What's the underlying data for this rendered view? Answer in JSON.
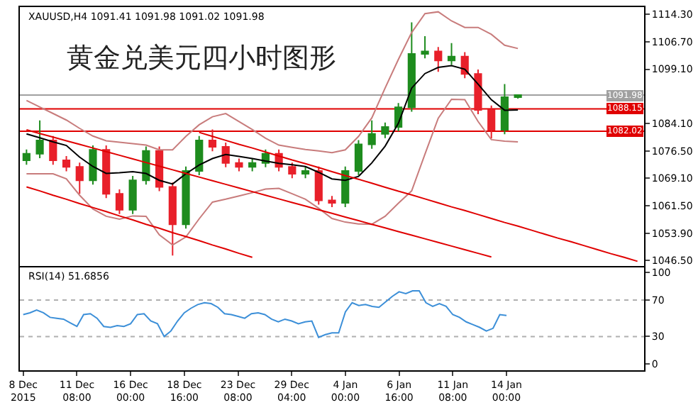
{
  "chart_data": [
    {
      "type": "candlestick",
      "title": "XAUUSD,H4 1091.41 1091.98 1091.02 1091.98",
      "annotations": [
        "黄金兑美元四小时图形"
      ],
      "categories": [
        null,
        null,
        null,
        null,
        null,
        null,
        null,
        null,
        null,
        null,
        null,
        null,
        null,
        null,
        null,
        null,
        null,
        null,
        null,
        null,
        null,
        null,
        null,
        null,
        null,
        null,
        null,
        null,
        null,
        null,
        null,
        null,
        null,
        null,
        null,
        null,
        null,
        null,
        null,
        null,
        null,
        null,
        null,
        null,
        null,
        null,
        null
      ],
      "ohlc": [
        [
          1074.0,
          1077.0,
          1072.8,
          1075.8
        ],
        [
          1075.8,
          1085.0,
          1074.6,
          1079.5
        ],
        [
          1079.5,
          1080.7,
          1072.8,
          1074.0
        ],
        [
          1074.0,
          1075.2,
          1071.0,
          1072.2
        ],
        [
          1072.2,
          1073.4,
          1064.8,
          1068.5
        ],
        [
          1068.5,
          1078.1,
          1067.3,
          1076.9
        ],
        [
          1076.9,
          1078.1,
          1063.6,
          1064.8
        ],
        [
          1064.8,
          1066.0,
          1059.2,
          1060.4
        ],
        [
          1060.4,
          1069.7,
          1059.2,
          1068.5
        ],
        [
          1068.5,
          1077.8,
          1067.3,
          1076.6
        ],
        [
          1076.6,
          1077.8,
          1065.5,
          1066.7
        ],
        [
          1066.7,
          1067.9,
          1047.8,
          1056.4
        ],
        [
          1056.4,
          1072.3,
          1055.2,
          1071.1
        ],
        [
          1071.1,
          1080.7,
          1069.9,
          1079.5
        ],
        [
          1079.5,
          1082.5,
          1076.5,
          1077.7
        ],
        [
          1077.7,
          1078.9,
          1072.1,
          1073.3
        ],
        [
          1073.3,
          1074.5,
          1071.0,
          1072.2
        ],
        [
          1072.2,
          1074.5,
          1071.0,
          1073.3
        ],
        [
          1073.3,
          1077.0,
          1072.1,
          1075.8
        ],
        [
          1075.8,
          1077.0,
          1071.0,
          1072.2
        ],
        [
          1072.2,
          1073.4,
          1069.1,
          1070.3
        ],
        [
          1070.3,
          1072.3,
          1069.1,
          1071.1
        ],
        [
          1071.1,
          1072.3,
          1061.8,
          1063.0
        ],
        [
          1063.0,
          1064.2,
          1061.1,
          1062.3
        ],
        [
          1062.3,
          1072.3,
          1061.1,
          1071.1
        ],
        [
          1071.1,
          1079.6,
          1069.9,
          1078.4
        ],
        [
          1078.4,
          1085.0,
          1077.2,
          1081.3
        ],
        [
          1081.3,
          1084.4,
          1080.1,
          1083.2
        ],
        [
          1083.2,
          1089.8,
          1082.0,
          1088.6
        ],
        [
          1088.6,
          1112.0,
          1087.4,
          1103.3
        ],
        [
          1103.3,
          1108.2,
          1102.1,
          1104.0
        ],
        [
          1104.0,
          1105.2,
          1098.4,
          1101.5
        ],
        [
          1101.5,
          1106.3,
          1100.3,
          1102.6
        ],
        [
          1102.6,
          1103.8,
          1096.6,
          1097.8
        ],
        [
          1097.8,
          1099.0,
          1086.7,
          1087.9
        ],
        [
          1087.9,
          1089.1,
          1080.0,
          1082.4
        ],
        [
          1082.4,
          1095.0,
          1081.2,
          1091.4
        ],
        [
          1091.41,
          1091.98,
          1091.02,
          1091.98
        ],
        null,
        null,
        null,
        null,
        null,
        null,
        null,
        null,
        null
      ],
      "colors": [
        "#1e8c1e",
        "#1e8c1e",
        "#e8202a",
        "#e8202a",
        "#e8202a",
        "#1e8c1e",
        "#e8202a",
        "#e8202a",
        "#1e8c1e",
        "#1e8c1e",
        "#e8202a",
        "#e8202a",
        "#1e8c1e",
        "#1e8c1e",
        "#e8202a",
        "#e8202a",
        "#e8202a",
        "#1e8c1e",
        "#1e8c1e",
        "#e8202a",
        "#e8202a",
        "#1e8c1e",
        "#e8202a",
        "#e8202a",
        "#1e8c1e",
        "#1e8c1e",
        "#1e8c1e",
        "#1e8c1e",
        "#1e8c1e",
        "#1e8c1e",
        "#1e8c1e",
        "#e8202a",
        "#1e8c1e",
        "#e8202a",
        "#e8202a",
        "#e8202a",
        "#1e8c1e",
        "#1e8c1e",
        null,
        null,
        null,
        null,
        null,
        null,
        null,
        null,
        null
      ],
      "series": [
        {
          "type": "line",
          "color": "#c87c7c",
          "values": [
            1090.5,
            1088.7,
            1086.9,
            1085.1,
            1082.8,
            1080.7,
            1079.4,
            1079.0,
            1078.6,
            1078.2,
            1076.9,
            1076.9,
            1080.6,
            1083.8,
            1086.0,
            1086.9,
            1084.7,
            1082.5,
            1080.1,
            1078.2,
            1077.6,
            1077.0,
            1076.6,
            1076.1,
            1076.9,
            1080.6,
            1085.7,
            1093.9,
            1101.8,
            1109.2,
            1114.4,
            1114.9,
            1112.4,
            1110.6,
            1110.6,
            1108.7,
            1105.7,
            1104.8,
            null,
            null,
            null,
            null,
            null,
            null,
            null,
            null,
            null
          ]
        },
        {
          "type": "line",
          "color": "#000000",
          "values": [
            1081.3,
            1080.2,
            1079.1,
            1078.1,
            1074.9,
            1072.3,
            1070.4,
            1070.6,
            1070.9,
            1070.4,
            1068.5,
            1067.5,
            1070.3,
            1072.7,
            1074.5,
            1075.6,
            1075.1,
            1074.5,
            1073.8,
            1073.2,
            1072.8,
            1072.3,
            1070.7,
            1068.9,
            1068.5,
            1069.6,
            1073.3,
            1077.9,
            1084.2,
            1093.9,
            1097.9,
            1099.6,
            1100.1,
            1099.1,
            1095.0,
            1090.7,
            1087.8,
            1087.9,
            null,
            null,
            null,
            null,
            null,
            null,
            null,
            null,
            null
          ]
        },
        {
          "type": "line",
          "color": "#c87c7c",
          "values": [
            1070.3,
            1070.3,
            1070.3,
            1068.9,
            1064.4,
            1060.6,
            1058.6,
            1057.8,
            1058.7,
            1058.6,
            1053.5,
            1050.7,
            1052.9,
            1057.9,
            1062.5,
            1063.3,
            1064.2,
            1065.1,
            1066.1,
            1066.3,
            1064.8,
            1063.3,
            1060.8,
            1058.0,
            1057.0,
            1056.5,
            1056.4,
            1058.6,
            1062.2,
            1065.6,
            1075.7,
            1085.6,
            1090.8,
            1090.7,
            1084.7,
            1079.7,
            1079.3,
            1079.1,
            null,
            null,
            null,
            null,
            null,
            null,
            null,
            null,
            null
          ]
        },
        {
          "type": "line",
          "color": "#e00000",
          "values": [
            1082.4,
            1081.4,
            1080.4,
            1079.4,
            1078.4,
            1077.4,
            1076.4,
            1075.4,
            1074.4,
            1073.4,
            1072.4,
            1071.4,
            1070.4,
            1069.4,
            1068.4,
            1067.4,
            1066.4,
            1065.4,
            1064.4,
            1063.4,
            1062.4,
            1061.4,
            1060.4,
            1059.4,
            1058.4,
            1057.4,
            1056.4,
            1055.4,
            1054.4,
            1053.4,
            1052.4,
            1051.4,
            1050.4,
            1049.4,
            1048.4,
            1047.4,
            null,
            null,
            null,
            null,
            null,
            null,
            null,
            null,
            null,
            null,
            null
          ]
        },
        {
          "type": "line",
          "color": "#e00000",
          "values": [
            null,
            null,
            null,
            null,
            null,
            null,
            null,
            null,
            null,
            null,
            null,
            null,
            null,
            1081.7,
            1080.6,
            1079.5,
            1078.4,
            1077.4,
            1076.3,
            1075.2,
            1074.1,
            1073.1,
            1072.0,
            1070.9,
            1069.8,
            1068.8,
            1067.7,
            1066.6,
            1065.5,
            1064.5,
            1063.4,
            1062.3,
            1061.2,
            1060.2,
            1059.1,
            1058.0,
            1056.9,
            1055.9,
            1054.8,
            1053.7,
            1052.6,
            1051.6,
            1050.5,
            1049.4,
            1048.3,
            1047.3,
            1046.2
          ]
        },
        {
          "type": "line",
          "color": "#e00000",
          "values": [
            1066.7,
            1065.6,
            1064.4,
            1063.3,
            1062.1,
            1061.0,
            1059.9,
            1058.7,
            1057.6,
            1056.4,
            1055.3,
            1054.1,
            1053.0,
            1051.9,
            1050.7,
            1049.6,
            1048.4,
            1047.3,
            null,
            null,
            null,
            null,
            null,
            null,
            null,
            null,
            null,
            null,
            null,
            null,
            null,
            null,
            null,
            null,
            null,
            null,
            null,
            null,
            null,
            null,
            null,
            null,
            null,
            null,
            null,
            null,
            null
          ]
        }
      ],
      "ref_lines": [
        {
          "axis": "y",
          "value": 1091.98,
          "label": "1091.98",
          "color": "#a0a0a0"
        },
        {
          "axis": "y",
          "value": 1088.15,
          "label": "1088.15",
          "color": "#e00000"
        },
        {
          "axis": "y",
          "value": 1082.02,
          "label": "1082.02",
          "color": "#e00000"
        }
      ],
      "ylim": [
        1045.0,
        1116.2
      ],
      "yticks": [
        {
          "value": 1114.3,
          "label": "1114.30"
        },
        {
          "value": 1106.7,
          "label": "1106.70"
        },
        {
          "value": 1099.1,
          "label": "1099.10"
        },
        {
          "value": 1084.1,
          "label": "1084.10"
        },
        {
          "value": 1076.5,
          "label": "1076.50"
        },
        {
          "value": 1069.1,
          "label": "1069.10"
        },
        {
          "value": 1061.5,
          "label": "1061.50"
        },
        {
          "value": 1053.9,
          "label": "1053.90"
        },
        {
          "value": 1046.5,
          "label": "1046.50"
        }
      ],
      "tick_labels": "y"
    },
    {
      "type": "line",
      "title": "RSI(14) 51.6856",
      "categories": [
        "8 Dec 2015",
        null,
        null,
        null,
        null,
        null,
        null,
        null,
        "11 Dec 08:00",
        null,
        null,
        null,
        null,
        null,
        null,
        null,
        "16 Dec 00:00",
        null,
        null,
        null,
        null,
        null,
        null,
        null,
        "18 Dec 16:00",
        null,
        null,
        null,
        null,
        null,
        null,
        null,
        "23 Dec 08:00",
        null,
        null,
        null,
        null,
        null,
        null,
        null,
        "29 Dec 04:00",
        null,
        null,
        null,
        null,
        null,
        null,
        null,
        "4 Jan 00:00",
        null,
        null,
        null,
        null,
        null,
        null,
        null,
        "6 Jan 16:00",
        null,
        null,
        null,
        null,
        null,
        null,
        null,
        "11 Jan 08:00",
        null,
        null,
        null,
        null,
        null,
        null,
        null,
        "14 Jan 00:00",
        null,
        null,
        null,
        null,
        null,
        null,
        null,
        null,
        null,
        null,
        null,
        null,
        null,
        null,
        null,
        null,
        null,
        null,
        null,
        null
      ],
      "series": [
        {
          "color": "#3c8fd8",
          "values": [
            54,
            56,
            59,
            56,
            51,
            50,
            49,
            45,
            41,
            54,
            55,
            50,
            41,
            40,
            42,
            41,
            44,
            54,
            55,
            47,
            44,
            30,
            36,
            47,
            56,
            61,
            65,
            67,
            66,
            62,
            55,
            54,
            52,
            50,
            55,
            56,
            54,
            49,
            46,
            49,
            47,
            44,
            46,
            47,
            29,
            32,
            34,
            34,
            57,
            67,
            64,
            65,
            63,
            62,
            68,
            74,
            79,
            77,
            80,
            80,
            67,
            63,
            66,
            63,
            54,
            51,
            46,
            43,
            40,
            36,
            39,
            54,
            53,
            null,
            null,
            null,
            null,
            null,
            null,
            null,
            null,
            null,
            null,
            null,
            null,
            null,
            null,
            null,
            null,
            null,
            null,
            null,
            null
          ]
        }
      ],
      "ref_lines": [
        {
          "axis": "y",
          "value": 70,
          "color": "#b0b0b0",
          "line_style": "dotted"
        },
        {
          "axis": "y",
          "value": 30,
          "color": "#b0b0b0",
          "line_style": "dotted"
        }
      ],
      "ylim": [
        -7,
        106
      ],
      "yticks": [
        0,
        30,
        70,
        100
      ]
    }
  ]
}
